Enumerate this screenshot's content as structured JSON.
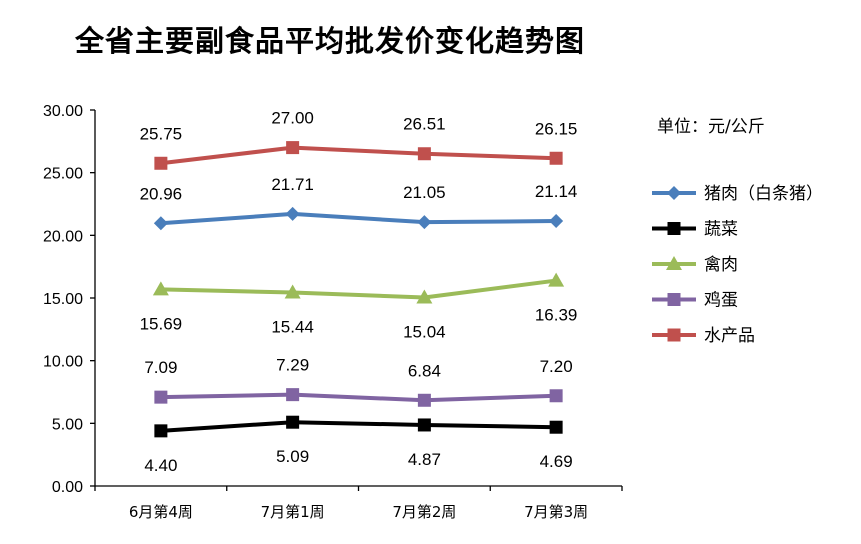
{
  "chart_data": {
    "type": "line",
    "title": "全省主要副食品平均批发价变化趋势图",
    "unit_label": "单位：元/公斤",
    "xlabel": "",
    "ylabel": "",
    "ylim": [
      0,
      30
    ],
    "yticks": [
      "0.00",
      "5.00",
      "10.00",
      "15.00",
      "20.00",
      "25.00",
      "30.00"
    ],
    "categories": [
      "6月第4周",
      "7月第1周",
      "7月第2周",
      "7月第3周"
    ],
    "grid": false,
    "legend_position": "right",
    "series": [
      {
        "name": "猪肉（白条猪）",
        "color": "#4a7ebb",
        "marker": "diamond",
        "values": [
          20.96,
          21.71,
          21.05,
          21.14
        ],
        "labels": [
          "20.96",
          "21.71",
          "21.05",
          "21.14"
        ],
        "label_pos": "above"
      },
      {
        "name": "蔬菜",
        "color": "#000000",
        "marker": "square",
        "values": [
          4.4,
          5.09,
          4.87,
          4.69
        ],
        "labels": [
          "4.40",
          "5.09",
          "4.87",
          "4.69"
        ],
        "label_pos": "below"
      },
      {
        "name": "禽肉",
        "color": "#9bbb59",
        "marker": "triangle",
        "values": [
          15.69,
          15.44,
          15.04,
          16.39
        ],
        "labels": [
          "15.69",
          "15.44",
          "15.04",
          "16.39"
        ],
        "label_pos": "below"
      },
      {
        "name": "鸡蛋",
        "color": "#8064a2",
        "marker": "square",
        "values": [
          7.09,
          7.29,
          6.84,
          7.2
        ],
        "labels": [
          "7.09",
          "7.29",
          "6.84",
          "7.20"
        ],
        "label_pos": "above"
      },
      {
        "name": "水产品",
        "color": "#c0504d",
        "marker": "square",
        "values": [
          25.75,
          27.0,
          26.51,
          26.15
        ],
        "labels": [
          "25.75",
          "27.00",
          "26.51",
          "26.15"
        ],
        "label_pos": "above"
      }
    ]
  }
}
